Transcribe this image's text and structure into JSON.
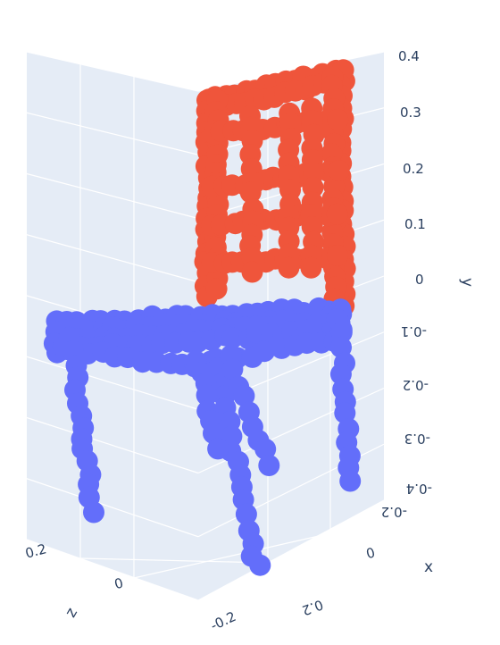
{
  "chart_data": {
    "type": "scatter3d",
    "title": "",
    "x_axis": {
      "label": "x",
      "ticks": [
        "0",
        "0.2"
      ]
    },
    "y_axis": {
      "label": "y",
      "ticks": [
        "0.4",
        "0.3",
        "0.2",
        "0.1",
        "0",
        "-0.1",
        "-0.2",
        "-0.3",
        "-0.4"
      ],
      "range": [
        -0.4,
        0.4
      ]
    },
    "z_axis": {
      "label": "z",
      "ticks": [
        "0.2",
        "0",
        "-0.2"
      ]
    },
    "x_axis_extra_tick": "-0.2",
    "grid": true,
    "legend": "none",
    "colors": {
      "backrest": "#ef553b",
      "seat_and_legs": "#636efa",
      "pane": "#e5ecf6",
      "grid": "#ffffff",
      "text": "#2a3f5f"
    },
    "series": [
      {
        "part": "backrest",
        "color": "#ef553b",
        "y_range": [
          0.0,
          0.4
        ]
      },
      {
        "part": "seat_and_legs",
        "color": "#636efa",
        "y_range": [
          -0.4,
          -0.05
        ]
      }
    ]
  }
}
